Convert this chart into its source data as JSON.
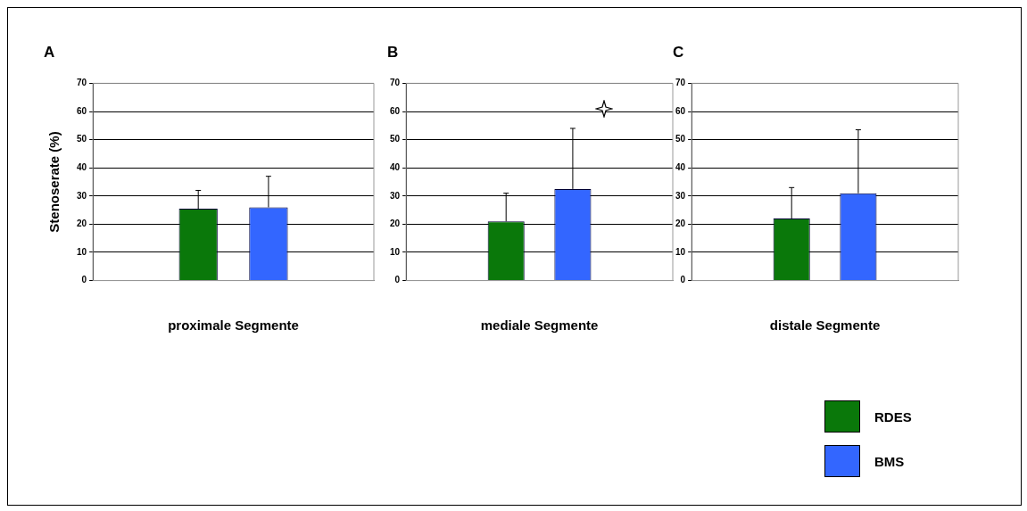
{
  "chart_data": [
    {
      "type": "bar",
      "title": "A",
      "xlabel": "proximale Segmente",
      "ylabel": "Stenoserate (%)",
      "categories": [
        null
      ],
      "ylim": [
        0,
        70
      ],
      "yticks": [
        0,
        10,
        20,
        30,
        40,
        50,
        60,
        70
      ],
      "grid": "y",
      "legend": false,
      "series": [
        {
          "color": "#0a780a",
          "values": [
            25.5
          ],
          "errors": [
            [
              25.5,
              32
            ]
          ]
        },
        {
          "color": "#3366ff",
          "values": [
            26
          ],
          "errors": [
            [
              26,
              37
            ]
          ]
        }
      ]
    },
    {
      "type": "bar",
      "title": "B",
      "xlabel": "mediale Segmente",
      "categories": [
        null
      ],
      "ylim": [
        0,
        70
      ],
      "yticks": [
        0,
        10,
        20,
        30,
        40,
        50,
        60,
        70
      ],
      "grid": "y",
      "legend": false,
      "series": [
        {
          "color": "#0a780a",
          "values": [
            21
          ],
          "errors": [
            [
              21,
              31
            ]
          ]
        },
        {
          "color": "#3366ff",
          "values": [
            32.5
          ],
          "errors": [
            [
              32.5,
              54
            ]
          ]
        }
      ]
    },
    {
      "type": "bar",
      "title": "C",
      "xlabel": "distale Segmente",
      "categories": [
        null
      ],
      "ylim": [
        0,
        70
      ],
      "yticks": [
        0,
        10,
        20,
        30,
        40,
        50,
        60,
        70
      ],
      "grid": "y",
      "legend": "bottom right",
      "series": [
        {
          "name": "RDES",
          "color": "#0a780a",
          "values": [
            22
          ],
          "errors": [
            [
              22,
              33
            ]
          ]
        },
        {
          "name": "BMS",
          "color": "#3366ff",
          "values": [
            31
          ],
          "errors": [
            [
              31,
              53.5
            ]
          ]
        }
      ]
    }
  ]
}
